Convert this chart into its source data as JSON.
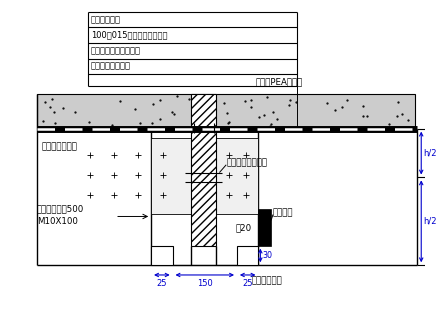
{
  "bg_color": "#ffffff",
  "line_color": "#000000",
  "blue_color": "#0000cd",
  "top1": "混凝土保护层",
  "top2": "100号015细石混凝土保护层",
  "top3": "三层油膏氯丁防水涂料",
  "top4": "结构板（预制平）",
  "waterstop_ext": "外贴式PEA止水带",
  "foam_board": "聚丙乙盖泡沫板",
  "center_waterstop": "中置式橡皮止水带",
  "screw1": "螺旋螺栓间距500",
  "screw2": "M10X100",
  "rubber_block": "橡皮块板",
  "thick20": "厚20",
  "groove": "万偶列据水槽",
  "dim_25a": "25",
  "dim_150": "150",
  "dim_25b": "25",
  "dim_30": "30",
  "dim_h2": "h/2"
}
